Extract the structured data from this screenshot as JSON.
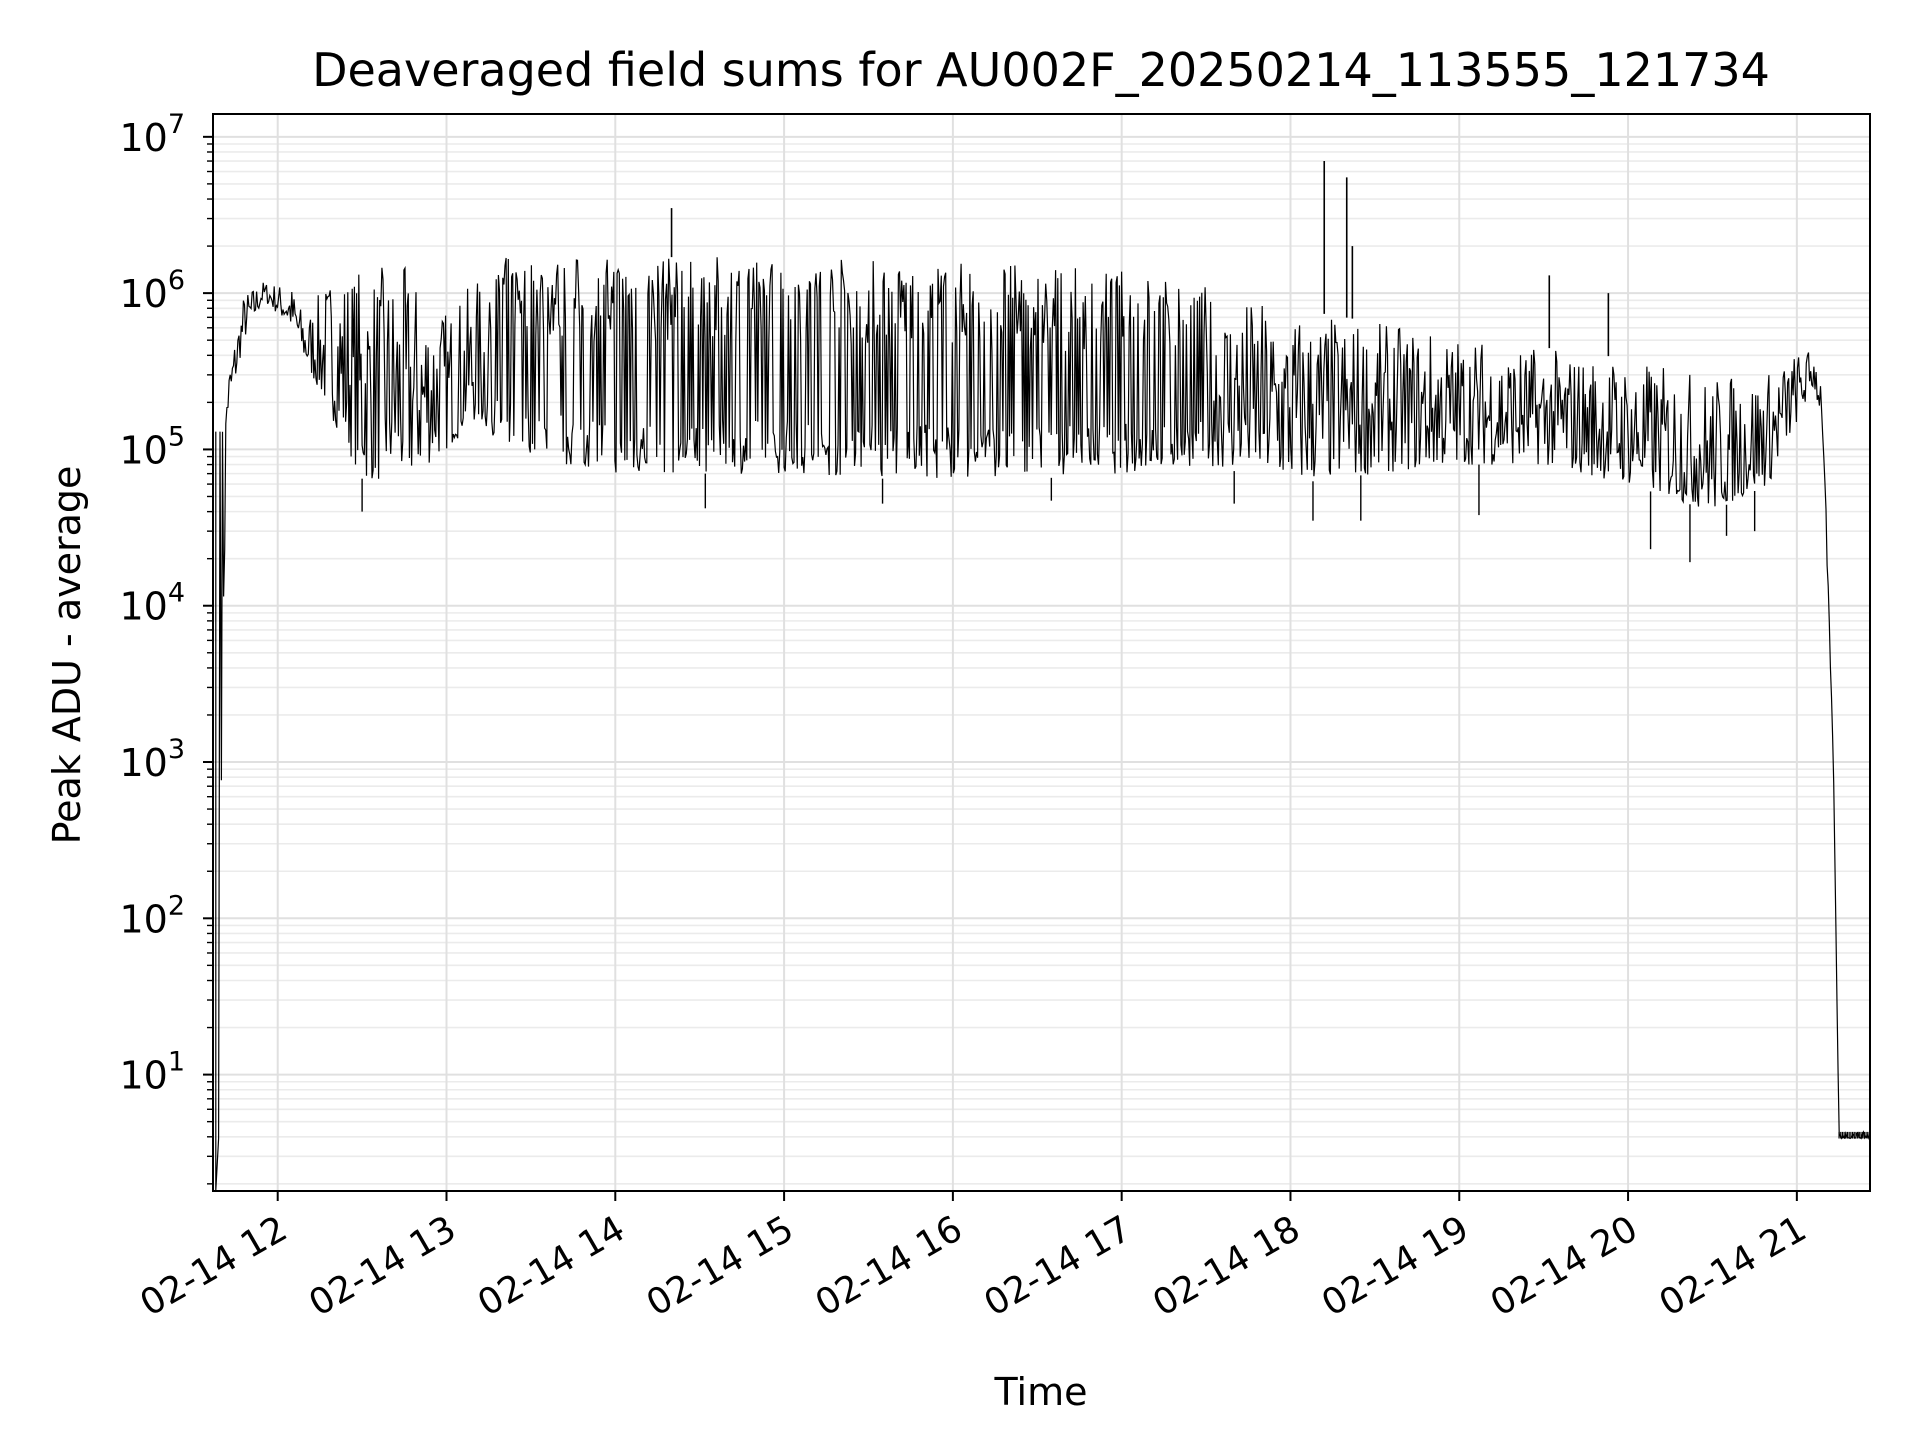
{
  "chart_data": {
    "type": "line",
    "title": "Deaveraged field sums for AU002F_20250214_113555_121734",
    "xlabel": "Time",
    "ylabel": "Peak ADU - average",
    "yscale": "log",
    "ylim": [
      1.8,
      14000000
    ],
    "xlim": [
      "2025-02-14 11:37",
      "2025-02-14 21:26"
    ],
    "grid": true,
    "grid_minor": true,
    "line_color": "#000000",
    "x_ticks": [
      {
        "value": "2025-02-14 12:00",
        "label": "02-14 12"
      },
      {
        "value": "2025-02-14 13:00",
        "label": "02-14 13"
      },
      {
        "value": "2025-02-14 14:00",
        "label": "02-14 14"
      },
      {
        "value": "2025-02-14 15:00",
        "label": "02-14 15"
      },
      {
        "value": "2025-02-14 16:00",
        "label": "02-14 16"
      },
      {
        "value": "2025-02-14 17:00",
        "label": "02-14 17"
      },
      {
        "value": "2025-02-14 18:00",
        "label": "02-14 18"
      },
      {
        "value": "2025-02-14 19:00",
        "label": "02-14 19"
      },
      {
        "value": "2025-02-14 20:00",
        "label": "02-14 20"
      },
      {
        "value": "2025-02-14 21:00",
        "label": "02-14 21"
      }
    ],
    "y_ticks": [
      {
        "value": 10,
        "base": "10",
        "exp": "1"
      },
      {
        "value": 100,
        "base": "10",
        "exp": "2"
      },
      {
        "value": 1000,
        "base": "10",
        "exp": "3"
      },
      {
        "value": 10000,
        "base": "10",
        "exp": "4"
      },
      {
        "value": 100000,
        "base": "10",
        "exp": "5"
      },
      {
        "value": 1000000,
        "base": "10",
        "exp": "6"
      },
      {
        "value": 10000000,
        "base": "10",
        "exp": "7"
      }
    ],
    "series": [
      {
        "lower_envelope": [
          [
            "2025-02-14 11:38",
            3.9
          ],
          [
            "2025-02-14 11:42",
            150000
          ],
          [
            "2025-02-14 11:48",
            500000
          ],
          [
            "2025-02-14 11:55",
            900000
          ],
          [
            "2025-02-14 12:05",
            600000
          ],
          [
            "2025-02-14 12:10",
            350000
          ],
          [
            "2025-02-14 12:20",
            150000
          ],
          [
            "2025-02-14 12:30",
            65000
          ],
          [
            "2025-02-14 12:45",
            60000
          ],
          [
            "2025-02-14 13:00",
            100000
          ],
          [
            "2025-02-14 13:10",
            150000
          ],
          [
            "2025-02-14 13:20",
            110000
          ],
          [
            "2025-02-14 13:40",
            80000
          ],
          [
            "2025-02-14 14:00",
            70000
          ],
          [
            "2025-02-14 14:30",
            70000
          ],
          [
            "2025-02-14 15:00",
            70000
          ],
          [
            "2025-02-14 15:30",
            65000
          ],
          [
            "2025-02-14 16:00",
            65000
          ],
          [
            "2025-02-14 16:30",
            65000
          ],
          [
            "2025-02-14 17:00",
            70000
          ],
          [
            "2025-02-14 17:30",
            80000
          ],
          [
            "2025-02-14 18:00",
            60000
          ],
          [
            "2025-02-14 18:30",
            70000
          ],
          [
            "2025-02-14 19:00",
            80000
          ],
          [
            "2025-02-14 19:30",
            80000
          ],
          [
            "2025-02-14 20:00",
            60000
          ],
          [
            "2025-02-14 20:30",
            40000
          ],
          [
            "2025-02-14 20:50",
            60000
          ],
          [
            "2025-02-14 21:00",
            150000
          ],
          [
            "2025-02-14 21:06",
            250000
          ],
          [
            "2025-02-14 21:09",
            150000
          ],
          [
            "2025-02-14 21:13",
            1000
          ],
          [
            "2025-02-14 21:15",
            3.9
          ],
          [
            "2025-02-14 21:26",
            3.9
          ]
        ],
        "upper_envelope": [
          [
            "2025-02-14 11:38",
            130000
          ],
          [
            "2025-02-14 11:42",
            300000
          ],
          [
            "2025-02-14 11:48",
            1000000
          ],
          [
            "2025-02-14 11:55",
            1200000
          ],
          [
            "2025-02-14 12:05",
            1100000
          ],
          [
            "2025-02-14 12:10",
            700000
          ],
          [
            "2025-02-14 12:20",
            1500000
          ],
          [
            "2025-02-14 12:30",
            1500000
          ],
          [
            "2025-02-14 12:45",
            1500000
          ],
          [
            "2025-02-14 13:00",
            800000
          ],
          [
            "2025-02-14 13:10",
            1200000
          ],
          [
            "2025-02-14 13:20",
            1700000
          ],
          [
            "2025-02-14 13:40",
            1700000
          ],
          [
            "2025-02-14 14:00",
            1700000
          ],
          [
            "2025-02-14 14:30",
            1700000
          ],
          [
            "2025-02-14 15:00",
            1700000
          ],
          [
            "2025-02-14 15:30",
            1700000
          ],
          [
            "2025-02-14 16:00",
            1600000
          ],
          [
            "2025-02-14 16:30",
            1500000
          ],
          [
            "2025-02-14 17:00",
            1400000
          ],
          [
            "2025-02-14 17:30",
            1100000
          ],
          [
            "2025-02-14 18:00",
            800000
          ],
          [
            "2025-02-14 18:30",
            650000
          ],
          [
            "2025-02-14 19:00",
            550000
          ],
          [
            "2025-02-14 19:30",
            450000
          ],
          [
            "2025-02-14 20:00",
            380000
          ],
          [
            "2025-02-14 20:30",
            300000
          ],
          [
            "2025-02-14 20:50",
            320000
          ],
          [
            "2025-02-14 21:00",
            420000
          ],
          [
            "2025-02-14 21:06",
            450000
          ],
          [
            "2025-02-14 21:09",
            300000
          ],
          [
            "2025-02-14 21:13",
            1000
          ],
          [
            "2025-02-14 21:15",
            4.3
          ],
          [
            "2025-02-14 21:26",
            4.3
          ]
        ],
        "deep_dips": [
          [
            "2025-02-14 12:30",
            40000
          ],
          [
            "2025-02-14 14:32",
            42000
          ],
          [
            "2025-02-14 15:35",
            45000
          ],
          [
            "2025-02-14 16:35",
            47000
          ],
          [
            "2025-02-14 17:40",
            45000
          ],
          [
            "2025-02-14 18:08",
            35000
          ],
          [
            "2025-02-14 18:25",
            35000
          ],
          [
            "2025-02-14 19:07",
            38000
          ],
          [
            "2025-02-14 20:08",
            23000
          ],
          [
            "2025-02-14 20:22",
            19000
          ],
          [
            "2025-02-14 20:35",
            28000
          ],
          [
            "2025-02-14 20:45",
            30000
          ]
        ],
        "spikes": [
          [
            "2025-02-14 14:20",
            3500000
          ],
          [
            "2025-02-14 18:12",
            7000000
          ],
          [
            "2025-02-14 18:20",
            5500000
          ],
          [
            "2025-02-14 18:22",
            2000000
          ],
          [
            "2025-02-14 19:32",
            1300000
          ],
          [
            "2025-02-14 19:53",
            1000000
          ]
        ]
      }
    ]
  }
}
